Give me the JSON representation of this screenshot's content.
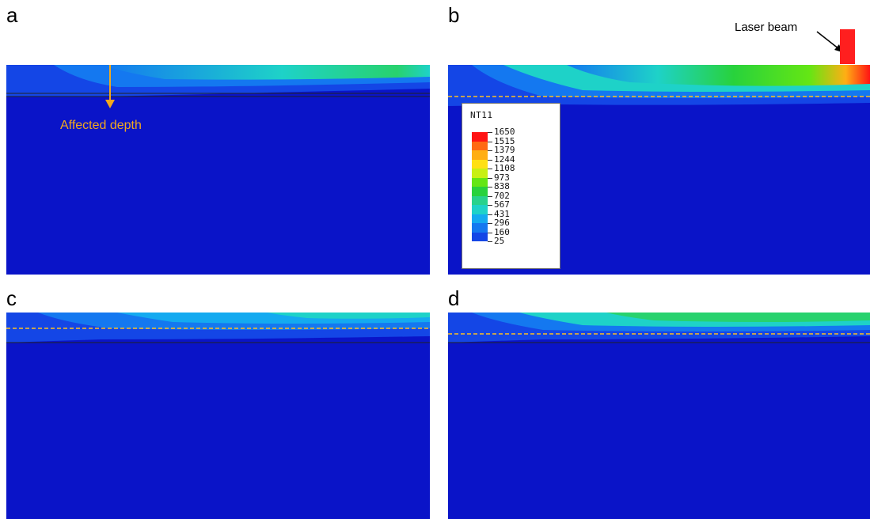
{
  "panels": [
    {
      "id": "a",
      "label": "a"
    },
    {
      "id": "b",
      "label": "b"
    },
    {
      "id": "c",
      "label": "c"
    },
    {
      "id": "d",
      "label": "d"
    }
  ],
  "annotations": {
    "affected_depth": "Affected depth",
    "laser_beam": "Laser beam"
  },
  "legend": {
    "title": "NT11",
    "values": [
      "1650",
      "1515",
      "1379",
      "1244",
      "1108",
      "973",
      "838",
      "702",
      "567",
      "431",
      "296",
      "160",
      "25"
    ],
    "colors": [
      "#ff1414",
      "#ff6a14",
      "#ffae14",
      "#ffe014",
      "#c8f014",
      "#64e614",
      "#28d23c",
      "#28d28c",
      "#1ed2c8",
      "#14aaf0",
      "#1478f0",
      "#1446e6",
      "#0a14c8"
    ]
  },
  "colors": {
    "background_field": "#0a14c8",
    "dashed_line": "#ffc020",
    "affected_arrow": "#f2a81d",
    "laser": "#ff1f1f"
  }
}
